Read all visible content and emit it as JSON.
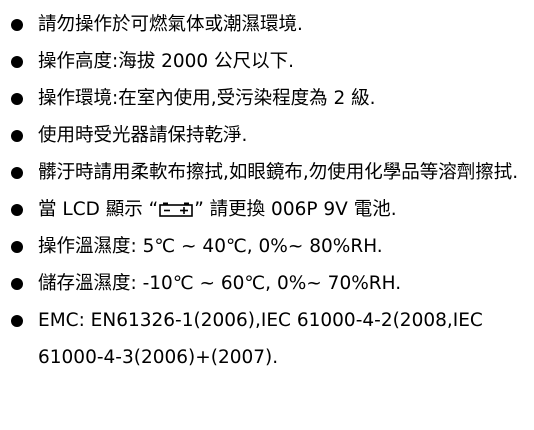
{
  "items": [
    {
      "text": "請勿操作於可燃氣体或潮濕環境."
    },
    {
      "text": "操作高度:海拔 2000 公尺以下."
    },
    {
      "text": "操作環境:在室內使用,受污染程度為 2 級."
    },
    {
      "text": "使用時受光器請保持乾淨."
    },
    {
      "text": "髒汙時請用柔軟布擦拭,如眼鏡布,勿使用化學品等溶劑擦拭."
    },
    {
      "before": "當 LCD 顯示 “",
      "icon": "battery-icon",
      "after": "” 請更換 006P 9V 電池."
    },
    {
      "text": "操作溫濕度: 5℃ ~ 40℃, 0%~ 80%RH."
    },
    {
      "text": "儲存溫濕度: -10℃ ~ 60℃, 0%~ 70%RH."
    },
    {
      "text": "EMC: EN61326-1(2006),IEC 61000-4-2(2008,IEC 61000-4-3(2006)+(2007)."
    }
  ]
}
